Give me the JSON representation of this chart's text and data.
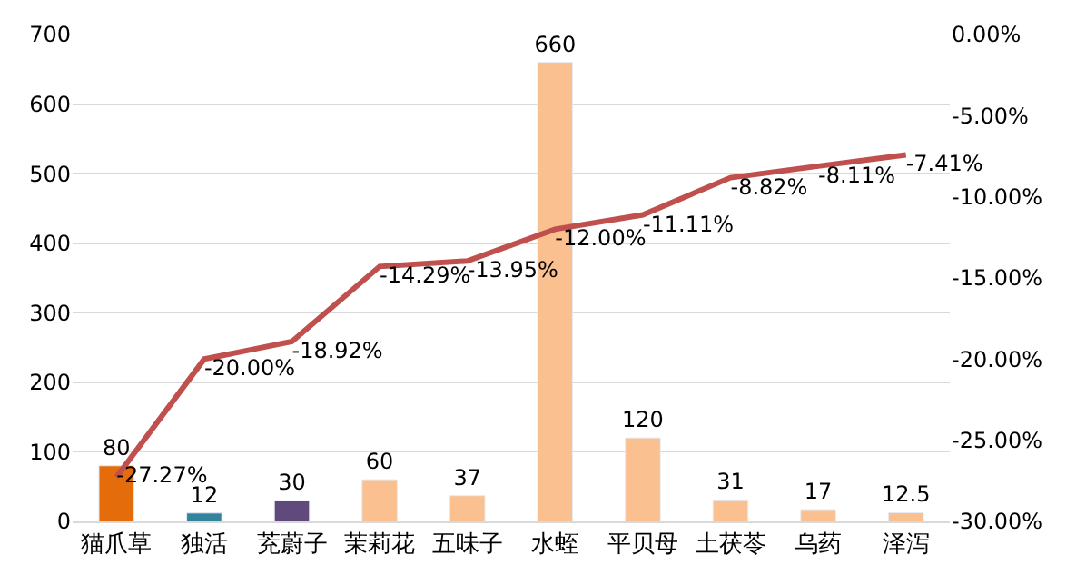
{
  "chart_data": {
    "type": "bar",
    "categories": [
      "猫爪草",
      "独活",
      "茺蔚子",
      "茉莉花",
      "五味子",
      "水蛭",
      "平贝母",
      "土茯苓",
      "乌药",
      "泽泻"
    ],
    "series": [
      {
        "colors": [
          "#e46c0a",
          "#31849b",
          "#604a7b",
          "#fac090",
          "#fac090",
          "#fac090",
          "#fac090",
          "#fac090",
          "#fac090",
          "#fac090"
        ],
        "values": [
          80,
          12,
          30,
          60,
          37,
          660,
          120,
          31,
          17,
          12.5
        ],
        "value_labels": [
          "80",
          "12",
          "30",
          "60",
          "37",
          "660",
          "120",
          "31",
          "17",
          "12.5"
        ]
      },
      {
        "type": "line",
        "axis": "y2",
        "color": "#c0504d",
        "values": [
          -27.27,
          -20.0,
          -18.92,
          -14.29,
          -13.95,
          -12.0,
          -11.11,
          -8.82,
          -8.11,
          -7.41
        ],
        "value_labels": [
          "-27.27%",
          "-20.00%",
          "-18.92%",
          "-14.29%",
          "-13.95%",
          "-12.00%",
          "-11.11%",
          "-8.82%",
          "-8.11%",
          "-7.41%"
        ]
      }
    ],
    "ylim": [
      0,
      700
    ],
    "yticks": [
      0,
      100,
      200,
      300,
      400,
      500,
      600,
      700
    ],
    "y2lim": [
      -30,
      0
    ],
    "y2ticks": [
      {
        "value": -30,
        "label": "-30.00%"
      },
      {
        "value": -25,
        "label": "-25.00%"
      },
      {
        "value": -20,
        "label": "-20.00%"
      },
      {
        "value": -15,
        "label": "-15.00%"
      },
      {
        "value": -10,
        "label": "-10.00%"
      },
      {
        "value": -5,
        "label": "-5.00%"
      },
      {
        "value": 0,
        "label": "0.00%"
      }
    ],
    "grid": "y",
    "marker": "none",
    "line_style": "solid"
  }
}
